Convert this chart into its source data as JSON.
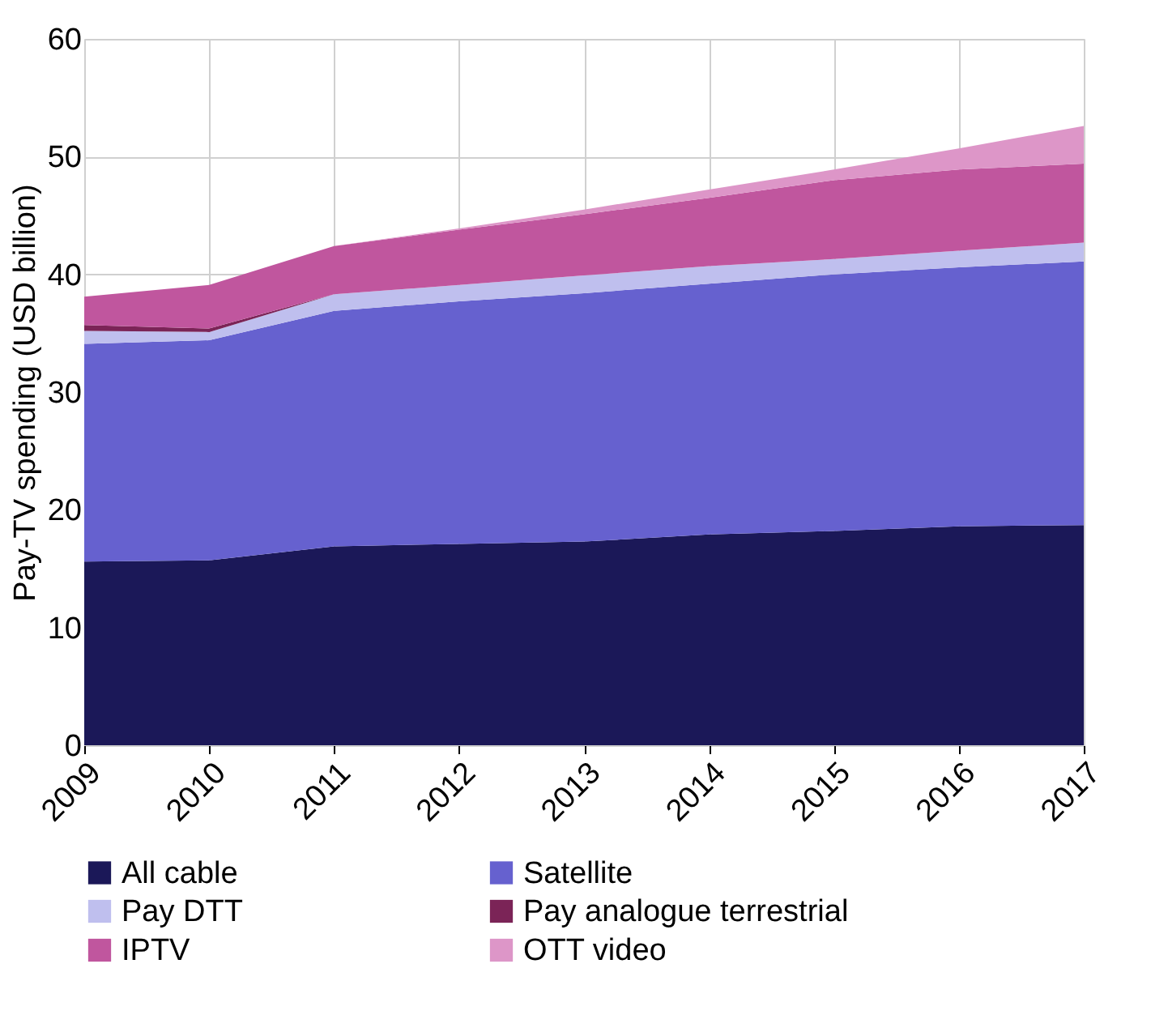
{
  "chart_data": {
    "type": "area",
    "stacked": true,
    "ylabel": "Pay-TV spending (USD billion)",
    "x": [
      2009,
      2010,
      2011,
      2012,
      2013,
      2014,
      2015,
      2016,
      2017
    ],
    "xlim": [
      2009,
      2017
    ],
    "xticks": [
      2009,
      2010,
      2011,
      2012,
      2013,
      2014,
      2015,
      2016,
      2017
    ],
    "ylim": [
      0,
      60
    ],
    "yticks": [
      0,
      10,
      20,
      30,
      40,
      50,
      60
    ],
    "grid": true,
    "legend": "bottom",
    "series": [
      {
        "name": "All cable",
        "color": "#1b1858",
        "values": [
          15.6,
          15.7,
          16.9,
          17.1,
          17.3,
          17.9,
          18.2,
          18.6,
          18.7
        ]
      },
      {
        "name": "Satellite",
        "color": "#6661cf",
        "values": [
          18.5,
          18.7,
          20.0,
          20.6,
          21.1,
          21.3,
          21.8,
          22.0,
          22.4
        ]
      },
      {
        "name": "Pay DTT",
        "color": "#bfbfee",
        "values": [
          1.1,
          0.7,
          1.4,
          1.4,
          1.5,
          1.5,
          1.3,
          1.4,
          1.6
        ]
      },
      {
        "name": "Pay analogue terrestrial",
        "color": "#7b2457",
        "values": [
          0.5,
          0.3,
          0,
          0,
          0,
          0,
          0,
          0,
          0
        ]
      },
      {
        "name": "IPTV",
        "color": "#c0569e",
        "values": [
          2.4,
          3.7,
          4.1,
          4.7,
          5.2,
          5.8,
          6.7,
          6.9,
          6.7
        ]
      },
      {
        "name": "OTT video",
        "color": "#dd96c8",
        "values": [
          0,
          0,
          0,
          0.1,
          0.4,
          0.7,
          0.9,
          1.8,
          3.2
        ]
      }
    ]
  }
}
